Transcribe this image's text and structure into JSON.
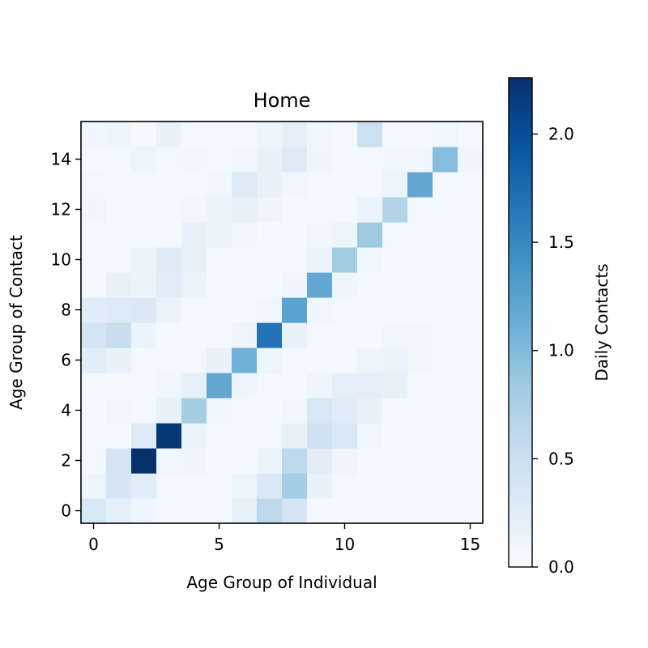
{
  "chart_data": {
    "type": "heatmap",
    "title": "Home",
    "xlabel": "Age Group of Individual",
    "ylabel": "Age Group of Contact",
    "x_ticks": [
      0,
      5,
      10,
      15
    ],
    "y_ticks": [
      0,
      2,
      4,
      6,
      8,
      10,
      12,
      14
    ],
    "colormap": "Blues",
    "colorbar": {
      "label": "Daily Contacts",
      "range": [
        0,
        2.26
      ],
      "ticks": [
        "0.0",
        "0.5",
        "1.0",
        "1.5",
        "2.0"
      ],
      "tick_values": [
        0,
        0.5,
        1.0,
        1.5,
        2.0
      ]
    },
    "rows_note": "matrix[row = contact age group 0..15][col = individual age group 0..15], values in daily contacts",
    "matrix": [
      [
        0.35,
        0.22,
        0.1,
        0.05,
        0.05,
        0.05,
        0.2,
        0.62,
        0.38,
        0.03,
        0.03,
        0.04,
        0.04,
        0.04,
        0.03,
        0.04
      ],
      [
        0.12,
        0.38,
        0.25,
        0.06,
        0.06,
        0.06,
        0.12,
        0.32,
        0.8,
        0.16,
        0.05,
        0.04,
        0.04,
        0.04,
        0.03,
        0.04
      ],
      [
        0.05,
        0.4,
        2.26,
        0.08,
        0.1,
        0.06,
        0.06,
        0.14,
        0.62,
        0.24,
        0.1,
        0.05,
        0.04,
        0.04,
        0.05,
        0.04
      ],
      [
        0.03,
        0.06,
        0.28,
        2.2,
        0.15,
        0.05,
        0.05,
        0.06,
        0.2,
        0.46,
        0.36,
        0.08,
        0.04,
        0.04,
        0.04,
        0.04
      ],
      [
        0.03,
        0.08,
        0.06,
        0.18,
        0.8,
        0.08,
        0.05,
        0.04,
        0.08,
        0.36,
        0.26,
        0.16,
        0.05,
        0.05,
        0.04,
        0.05
      ],
      [
        0.03,
        0.05,
        0.06,
        0.09,
        0.2,
        1.2,
        0.1,
        0.05,
        0.05,
        0.1,
        0.22,
        0.22,
        0.18,
        0.06,
        0.04,
        0.04
      ],
      [
        0.25,
        0.16,
        0.04,
        0.06,
        0.05,
        0.16,
        1.1,
        0.12,
        0.06,
        0.04,
        0.06,
        0.12,
        0.15,
        0.09,
        0.04,
        0.04
      ],
      [
        0.38,
        0.52,
        0.14,
        0.05,
        0.04,
        0.04,
        0.1,
        1.68,
        0.18,
        0.04,
        0.04,
        0.04,
        0.08,
        0.08,
        0.05,
        0.03
      ],
      [
        0.26,
        0.3,
        0.32,
        0.15,
        0.05,
        0.04,
        0.04,
        0.09,
        1.25,
        0.08,
        0.05,
        0.05,
        0.05,
        0.04,
        0.04,
        0.04
      ],
      [
        0.04,
        0.17,
        0.14,
        0.25,
        0.14,
        0.04,
        0.04,
        0.04,
        0.1,
        1.18,
        0.1,
        0.04,
        0.04,
        0.04,
        0.04,
        0.06
      ],
      [
        0.04,
        0.06,
        0.14,
        0.28,
        0.18,
        0.04,
        0.04,
        0.03,
        0.04,
        0.14,
        0.8,
        0.08,
        0.04,
        0.04,
        0.04,
        0.06
      ],
      [
        0.03,
        0.04,
        0.04,
        0.03,
        0.17,
        0.14,
        0.08,
        0.03,
        0.03,
        0.08,
        0.12,
        0.85,
        0.05,
        0.05,
        0.04,
        0.06
      ],
      [
        0.08,
        0.04,
        0.04,
        0.05,
        0.08,
        0.14,
        0.2,
        0.1,
        0.05,
        0.05,
        0.06,
        0.15,
        0.7,
        0.05,
        0.04,
        0.04
      ],
      [
        0.07,
        0.05,
        0.05,
        0.05,
        0.05,
        0.08,
        0.28,
        0.16,
        0.08,
        0.05,
        0.05,
        0.07,
        0.12,
        1.2,
        0.06,
        0.04
      ],
      [
        0.04,
        0.05,
        0.12,
        0.07,
        0.08,
        0.05,
        0.08,
        0.16,
        0.28,
        0.1,
        0.05,
        0.05,
        0.08,
        0.08,
        0.98,
        0.1
      ],
      [
        0.08,
        0.12,
        0.03,
        0.16,
        0.05,
        0.05,
        0.05,
        0.12,
        0.22,
        0.08,
        0.04,
        0.48,
        0.04,
        0.04,
        0.08,
        0.04
      ]
    ]
  }
}
